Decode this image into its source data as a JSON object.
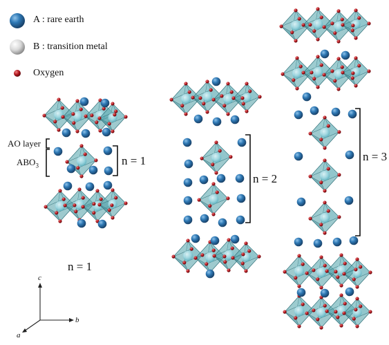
{
  "legend": {
    "a_label": "A : rare earth",
    "b_label": "B : transition metal",
    "o_label": "Oxygen"
  },
  "colors": {
    "rare_earth": "#2f79b5",
    "rare_earth_dark": "#1d5688",
    "transition_metal": "#d9d9d9",
    "oxygen": "#b0161d",
    "octahedron_fill": "#4e9ea6",
    "octahedron_edge": "#2f6f78",
    "inner_b": "#a8dde8"
  },
  "annotations": {
    "ao_layer": "AO layer",
    "abo3_main": "ABO",
    "abo3_sub": "3",
    "n1_bracket": "n = 1",
    "n2_bracket": "n = 2",
    "n3_bracket": "n = 3",
    "n1_caption": "n = 1"
  },
  "axes": {
    "c": "c",
    "b": "b",
    "a": "a"
  }
}
